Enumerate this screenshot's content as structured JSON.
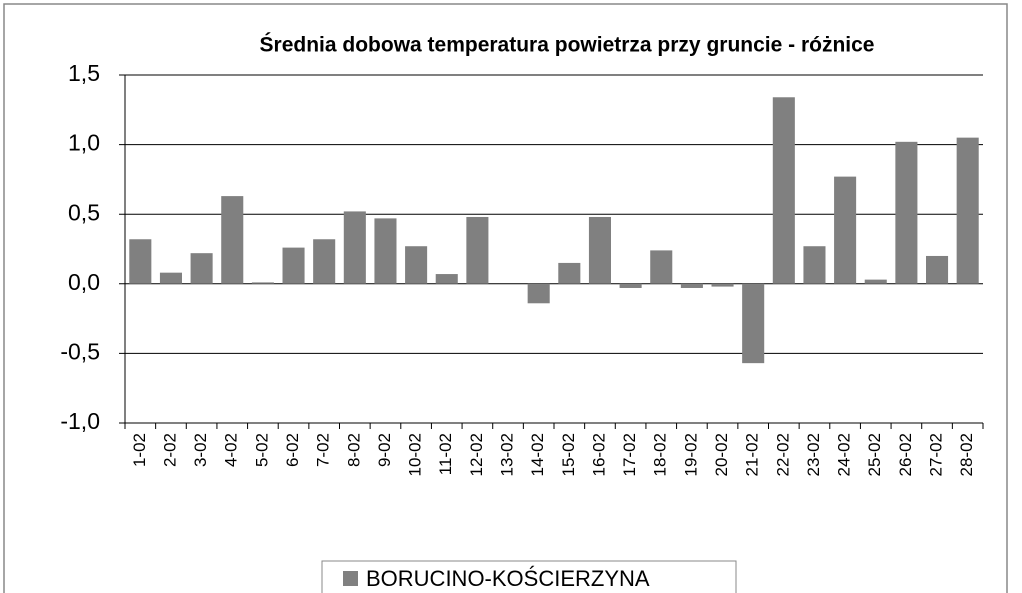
{
  "chart_data": {
    "type": "bar",
    "title": "Średnia dobowa temperatura powietrza przy gruncie - różnice",
    "categories": [
      "1-02",
      "2-02",
      "3-02",
      "4-02",
      "5-02",
      "6-02",
      "7-02",
      "8-02",
      "9-02",
      "10-02",
      "11-02",
      "12-02",
      "13-02",
      "14-02",
      "15-02",
      "16-02",
      "17-02",
      "18-02",
      "19-02",
      "20-02",
      "21-02",
      "22-02",
      "23-02",
      "24-02",
      "25-02",
      "26-02",
      "27-02",
      "28-02"
    ],
    "series": [
      {
        "name": "BORUCINO-KOŚCIERZYNA",
        "color": "#808080",
        "values": [
          0.32,
          0.08,
          0.22,
          0.63,
          0.01,
          0.26,
          0.32,
          0.52,
          0.47,
          0.27,
          0.07,
          0.48,
          0,
          -0.14,
          0.15,
          0.48,
          -0.03,
          0.24,
          -0.03,
          -0.02,
          -0.57,
          1.34,
          0.27,
          0.77,
          0.03,
          1.02,
          0.2,
          1.05
        ]
      }
    ],
    "ylim": [
      -1,
      1.5
    ],
    "yticks": [
      {
        "value": -1,
        "label": "-1,0"
      },
      {
        "value": -0.5,
        "label": "-0,5"
      },
      {
        "value": 0,
        "label": "0,0"
      },
      {
        "value": 0.5,
        "label": "0,5"
      },
      {
        "value": 1,
        "label": "1,0"
      },
      {
        "value": 1.5,
        "label": "1,5"
      }
    ],
    "grid": true,
    "legend": "bottom"
  }
}
